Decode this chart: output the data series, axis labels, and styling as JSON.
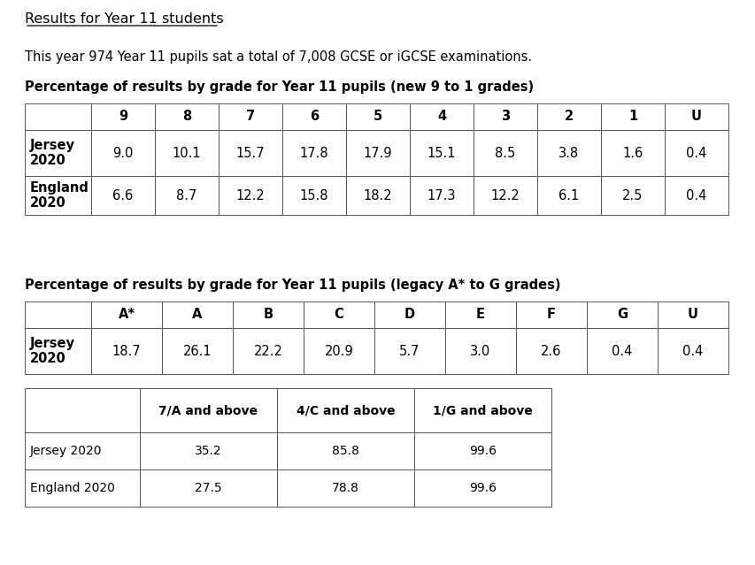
{
  "title_underline": "Results for Year 11 students",
  "subtitle": "This year 974 Year 11 pupils sat a total of 7,008 GCSE or iGCSE examinations.",
  "table1_title": "Percentage of results by grade for Year 11 pupils (new 9 to 1 grades)",
  "table1_headers": [
    "",
    "9",
    "8",
    "7",
    "6",
    "5",
    "4",
    "3",
    "2",
    "1",
    "U"
  ],
  "table1_rows": [
    [
      "Jersey\n2020",
      "9.0",
      "10.1",
      "15.7",
      "17.8",
      "17.9",
      "15.1",
      "8.5",
      "3.8",
      "1.6",
      "0.4"
    ],
    [
      "England\n2020",
      "6.6",
      "8.7",
      "12.2",
      "15.8",
      "18.2",
      "17.3",
      "12.2",
      "6.1",
      "2.5",
      "0.4"
    ]
  ],
  "table2_title": "Percentage of results by grade for Year 11 pupils (legacy A* to G grades)",
  "table2_headers": [
    "",
    "A*",
    "A",
    "B",
    "C",
    "D",
    "E",
    "F",
    "G",
    "U"
  ],
  "table2_rows": [
    [
      "Jersey\n2020",
      "18.7",
      "26.1",
      "22.2",
      "20.9",
      "5.7",
      "3.0",
      "2.6",
      "0.4",
      "0.4"
    ]
  ],
  "table3_headers": [
    "",
    "7/A and above",
    "4/C and above",
    "1/G and above"
  ],
  "table3_rows": [
    [
      "Jersey 2020",
      "35.2",
      "85.8",
      "99.6"
    ],
    [
      "England 2020",
      "27.5",
      "78.8",
      "99.6"
    ]
  ],
  "bg_color": "#ffffff",
  "text_color": "#000000"
}
